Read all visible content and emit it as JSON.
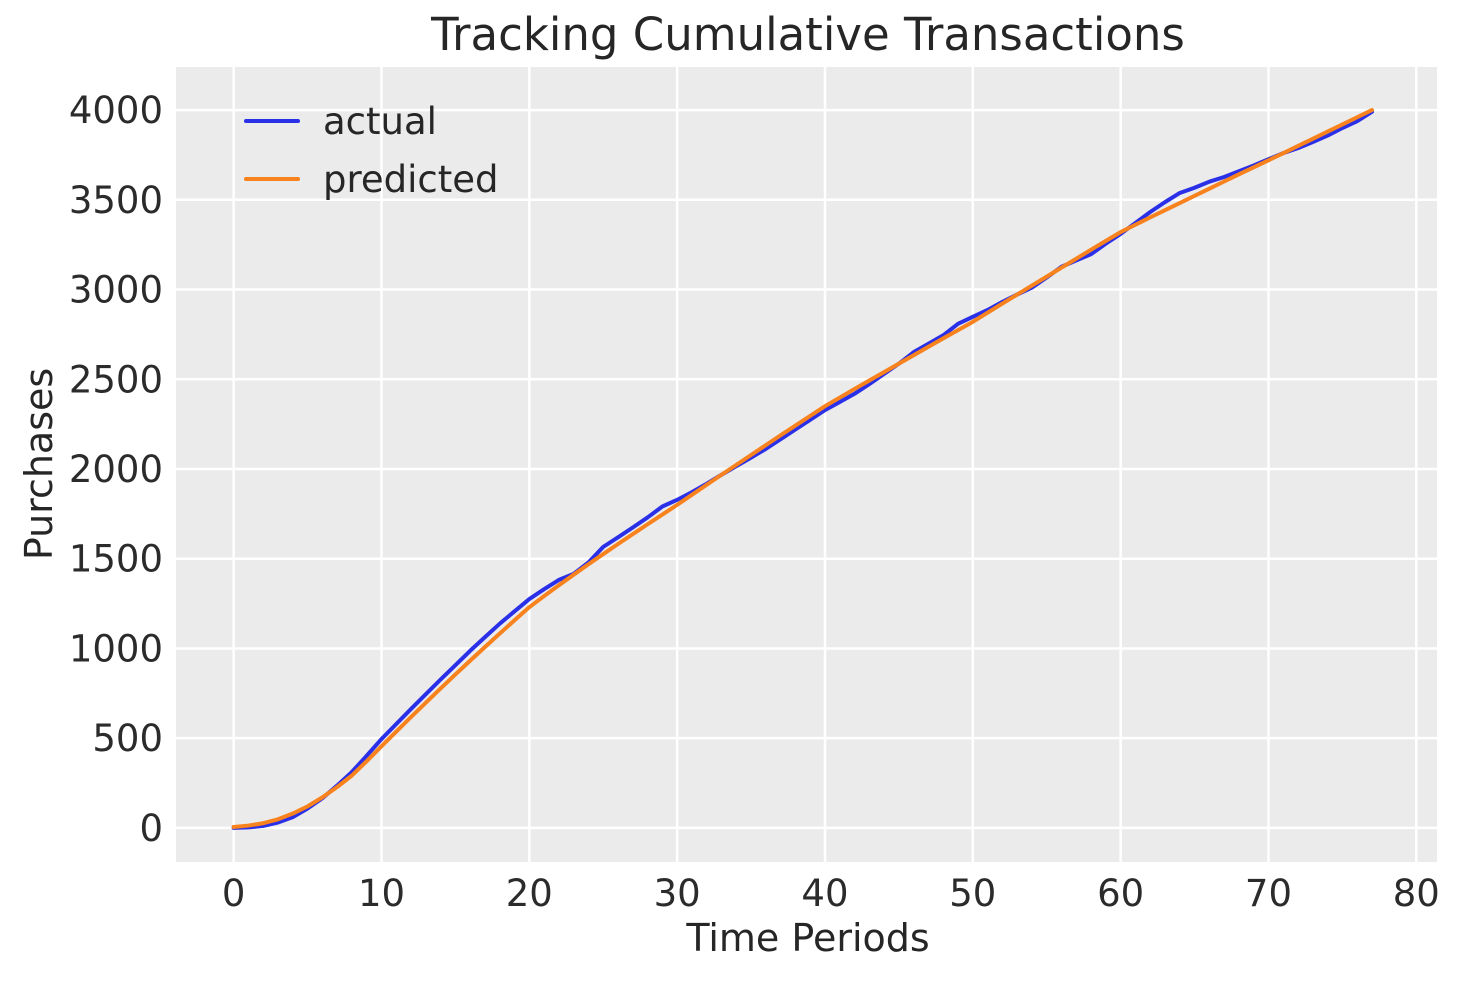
{
  "chart_data": {
    "type": "line",
    "title": "Tracking Cumulative Transactions",
    "xlabel": "Time Periods",
    "ylabel": "Purchases",
    "xticks": [
      0,
      10,
      20,
      30,
      40,
      50,
      60,
      70,
      80
    ],
    "yticks": [
      0,
      500,
      1000,
      1500,
      2000,
      2500,
      3000,
      3500,
      4000
    ],
    "xlim": [
      -3.9,
      81.4
    ],
    "ylim": [
      -190,
      4240
    ],
    "grid": true,
    "legend_position": "upper-left",
    "panel_background": "#ebebeb",
    "grid_color": "#ffffff",
    "text_color": "#262626",
    "x": [
      0,
      1,
      2,
      3,
      4,
      5,
      6,
      7,
      8,
      9,
      10,
      11,
      12,
      13,
      14,
      15,
      16,
      17,
      18,
      19,
      20,
      21,
      22,
      23,
      24,
      25,
      26,
      27,
      28,
      29,
      30,
      31,
      32,
      33,
      34,
      35,
      36,
      37,
      38,
      39,
      40,
      41,
      42,
      43,
      44,
      45,
      46,
      47,
      48,
      49,
      50,
      51,
      52,
      53,
      54,
      55,
      56,
      57,
      58,
      59,
      60,
      61,
      62,
      63,
      64,
      65,
      66,
      67,
      68,
      69,
      70,
      71,
      72,
      73,
      74,
      75,
      76,
      77
    ],
    "series": [
      {
        "name": "actual",
        "color": "#2a30e8",
        "values": [
          0,
          3,
          11,
          30,
          60,
          108,
          165,
          236,
          312,
          402,
          495,
          579,
          663,
          745,
          827,
          907,
          987,
          1063,
          1138,
          1207,
          1275,
          1330,
          1382,
          1416,
          1479,
          1566,
          1619,
          1674,
          1730,
          1791,
          1828,
          1871,
          1918,
          1968,
          2016,
          2063,
          2112,
          2166,
          2220,
          2274,
          2328,
          2373,
          2419,
          2473,
          2530,
          2587,
          2651,
          2698,
          2745,
          2809,
          2848,
          2886,
          2931,
          2972,
          3011,
          3067,
          3127,
          3162,
          3197,
          3256,
          3310,
          3371,
          3432,
          3487,
          3538,
          3567,
          3601,
          3627,
          3659,
          3691,
          3726,
          3760,
          3788,
          3822,
          3858,
          3900,
          3938,
          3990
        ]
      },
      {
        "name": "predicted",
        "color": "#f8821d",
        "values": [
          5,
          13,
          26,
          48,
          80,
          120,
          170,
          228,
          292,
          372,
          455,
          537,
          618,
          698,
          777,
          855,
          932,
          1008,
          1083,
          1157,
          1230,
          1292,
          1352,
          1411,
          1469,
          1526,
          1582,
          1637,
          1692,
          1746,
          1800,
          1856,
          1912,
          1968,
          2023,
          2078,
          2133,
          2188,
          2242,
          2296,
          2350,
          2398,
          2446,
          2493,
          2540,
          2587,
          2634,
          2681,
          2728,
          2774,
          2820,
          2871,
          2922,
          2972,
          3022,
          3072,
          3122,
          3172,
          3222,
          3271,
          3320,
          3361,
          3402,
          3442,
          3482,
          3522,
          3562,
          3602,
          3642,
          3681,
          3720,
          3760,
          3800,
          3840,
          3880,
          3920,
          3960,
          4000
        ]
      }
    ]
  }
}
